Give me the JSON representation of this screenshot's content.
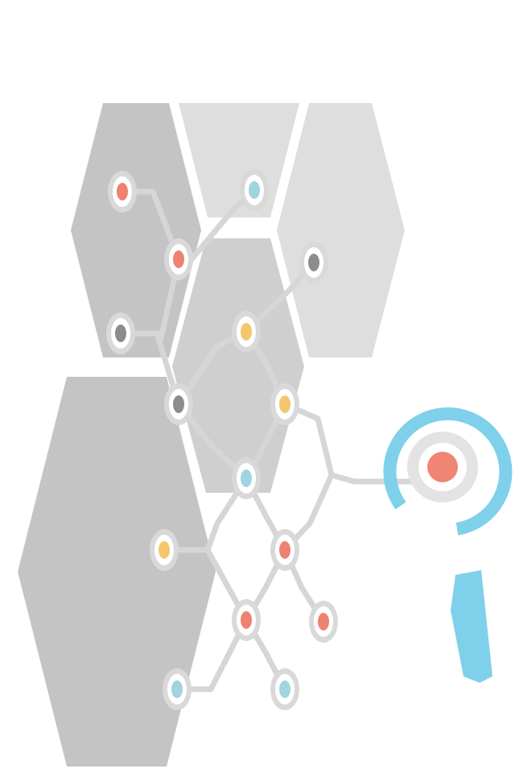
{
  "illustration": {
    "subject": "hexagon-network-with-magnifier",
    "palette": {
      "hex_dark": "#c4c4c4",
      "hex_mid": "#cfcfcf",
      "hex_light": "#dedede",
      "line": "#d6d6d6",
      "node_ring": "#ffffff",
      "node_outer": "#d9d9d9",
      "dot_red": "#ee8270",
      "dot_blue": "#9fd5df",
      "dot_yellow": "#f4c76e",
      "dot_gray": "#8c8c8c",
      "magnifier": "#7fd0ea",
      "target_ring": "#e3e3e3",
      "target_center": "#ef8572"
    },
    "nodes": [
      {
        "color": "red"
      },
      {
        "color": "blue"
      },
      {
        "color": "red"
      },
      {
        "color": "gray"
      },
      {
        "color": "gray"
      },
      {
        "color": "yellow"
      },
      {
        "color": "gray"
      },
      {
        "color": "yellow"
      },
      {
        "color": "blue"
      },
      {
        "color": "yellow"
      },
      {
        "color": "red"
      },
      {
        "color": "red"
      },
      {
        "color": "red"
      },
      {
        "color": "blue"
      },
      {
        "color": "blue"
      }
    ],
    "magnifier_icon": "magnifier-icon"
  }
}
